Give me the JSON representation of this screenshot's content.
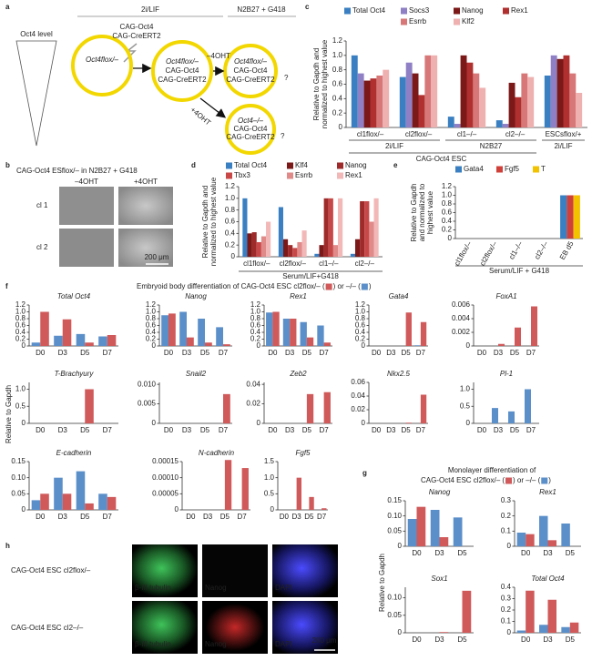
{
  "panels": {
    "a": {
      "letter": "a",
      "top_condition": "2i/LIF",
      "level": "Oct4 level",
      "transgene": [
        "CAG-Oct4",
        "CAG-CreERT2"
      ],
      "start_cell": [
        "Oct4flox/–",
        "CAG-Oct4",
        "CAG-CreERT2"
      ],
      "medium": "N2B27 + G418",
      "minus": "–4OHT",
      "plus": "+4OHT",
      "minus_cell": [
        "Oct4flox/–",
        "CAG-Oct4",
        "CAG-CreERT2"
      ],
      "plus_cell": [
        "Oct4–/–",
        "CAG-Oct4",
        "CAG-CreERT2"
      ],
      "outcome": [
        "?",
        "?"
      ]
    },
    "b": {
      "letter": "b",
      "title": "CAG-Oct4 ESflox/– in N2B27 + G418",
      "columns": [
        "–4OHT",
        "+4OHT"
      ],
      "rows": [
        "cl 1",
        "cl 2"
      ],
      "scale": "200 μm"
    },
    "c": {
      "letter": "c"
    },
    "d": {
      "letter": "d"
    },
    "e": {
      "letter": "e"
    },
    "f": {
      "letter": "f",
      "title_parts": [
        "Embryoid body differentiation of CAG-Oct4 ESC cl2flox/– (",
        ") or –/– (",
        ")"
      ],
      "ylabel": "Relative to Gapdh"
    },
    "g": {
      "letter": "g",
      "title_line": "Monolayer differentiation of",
      "title_parts": [
        "CAG-Oct4 ESC cl2flox/– (",
        ") or –/– (",
        ")"
      ],
      "ylabel": "Relative to Gapdh"
    },
    "h": {
      "letter": "h",
      "rows": [
        "CAG-Oct4 ESC cl2flox/–",
        "CAG-Oct4 ESC cl2–/–"
      ],
      "stains": [
        [
          "β-III tubulin",
          "Nanog",
          "DAPI"
        ],
        [
          "β-III tubulin",
          "Nanog",
          "DAPI"
        ]
      ],
      "scale": "200 μm"
    }
  },
  "chart_data": [
    {
      "type": "bar",
      "ylabel": [
        "Relative to Gapdh and",
        "normalized to highest value"
      ],
      "categories": [
        "cl1flox/–",
        "cl2flox/–",
        "cl1–/–",
        "cl2–/–",
        "ESCsflox/+"
      ],
      "groups": [
        "2i/LIF",
        "N2B27",
        "2i/LIF"
      ],
      "xlabel": "CAG-Oct4 ESC",
      "series": [
        {
          "name": "Total Oct4",
          "color": "#3a7fc1",
          "values": [
            1.0,
            0.7,
            0.15,
            0.1,
            0.72
          ]
        },
        {
          "name": "Socs3",
          "color": "#8f7fc4",
          "values": [
            0.75,
            0.9,
            0.05,
            0.05,
            1.0
          ]
        },
        {
          "name": "Nanog",
          "color": "#7b1818",
          "values": [
            0.65,
            0.75,
            1.0,
            0.62,
            0.95
          ]
        },
        {
          "name": "Rex1",
          "color": "#b03030",
          "values": [
            0.68,
            0.45,
            0.9,
            0.42,
            1.0
          ]
        },
        {
          "name": "Esrrb",
          "color": "#d77777",
          "values": [
            0.72,
            1.0,
            0.75,
            0.75,
            0.75
          ]
        },
        {
          "name": "Klf2",
          "color": "#efb0b0",
          "values": [
            0.8,
            1.0,
            0.55,
            0.7,
            0.48
          ]
        }
      ],
      "ylim": [
        0,
        1.2
      ],
      "yticks": [
        0,
        0.2,
        0.4,
        0.6,
        0.8,
        {
          "value": 1,
          "label": "1.0"
        },
        1.2
      ]
    },
    {
      "type": "bar",
      "ylabel": [
        "Relative to Gapdh and",
        "normalized to highest value"
      ],
      "categories": [
        "cl1flox/–",
        "cl2flox/–",
        "cl1–/–",
        "cl2–/–"
      ],
      "xlabel": "Serum/LIF+G418",
      "series": [
        {
          "name": "Total Oct4",
          "color": "#3a7fc1",
          "values": [
            1.0,
            0.85,
            0.05,
            0.05
          ]
        },
        {
          "name": "Klf4",
          "color": "#7b1818",
          "values": [
            0.4,
            0.3,
            0.2,
            0.3
          ]
        },
        {
          "name": "Nanog",
          "color": "#9e2a2a",
          "values": [
            0.42,
            0.2,
            1.0,
            0.95
          ]
        },
        {
          "name": "Tbx3",
          "color": "#c84848",
          "values": [
            0.25,
            0.15,
            1.0,
            0.95
          ]
        },
        {
          "name": "Esrrb",
          "color": "#e08a8a",
          "values": [
            0.35,
            0.25,
            0.2,
            0.6
          ]
        },
        {
          "name": "Rex1",
          "color": "#f2b8b8",
          "values": [
            0.6,
            0.45,
            1.0,
            1.0
          ]
        }
      ],
      "ylim": [
        0,
        1.2
      ],
      "yticks": [
        0,
        0.2,
        0.4,
        0.6,
        0.8,
        {
          "value": 1,
          "label": "1.0"
        },
        1.2
      ]
    },
    {
      "type": "bar",
      "ylabel": [
        "Relative to Gapdh",
        "and normalized to",
        "highest value"
      ],
      "categories": [
        "cl1flox/–",
        "cl2flox/–",
        "cl1–/–",
        "cl2–/–",
        "EB d5"
      ],
      "xlabel": "Serum/LIF + G418",
      "series": [
        {
          "name": "Gata4",
          "color": "#3a7fc1",
          "values": [
            0,
            0,
            0,
            0,
            1.0
          ]
        },
        {
          "name": "Fgf5",
          "color": "#d0403a",
          "values": [
            0,
            0,
            0,
            0,
            1.0
          ]
        },
        {
          "name": "T",
          "color": "#f2c200",
          "values": [
            0,
            0,
            0,
            0,
            1.0
          ]
        }
      ],
      "ylim": [
        0,
        1.2
      ],
      "yticks": [
        0,
        0.2,
        0.4,
        0.6,
        0.8,
        {
          "value": 1,
          "label": "1.0"
        },
        1.2
      ]
    },
    {
      "type": "bar",
      "title": "Total Oct4",
      "categories": [
        "D0",
        "D3",
        "D5",
        "D7"
      ],
      "series": [
        {
          "color": "#5b8fc9",
          "values": [
            0.1,
            0.3,
            0.35,
            0.28
          ]
        },
        {
          "color": "#d0595a",
          "values": [
            1.0,
            0.78,
            0.1,
            0.32
          ]
        }
      ],
      "ylim": [
        0,
        1.2
      ],
      "yticks": [
        0,
        0.2,
        0.4,
        0.6,
        0.8,
        {
          "value": 1,
          "label": "1.0"
        },
        1.2
      ]
    },
    {
      "type": "bar",
      "title": "Nanog",
      "categories": [
        "D0",
        "D3",
        "D5",
        "D7"
      ],
      "series": [
        {
          "color": "#5b8fc9",
          "values": [
            0.9,
            1.0,
            0.8,
            0.55
          ]
        },
        {
          "color": "#d0595a",
          "values": [
            0.95,
            0.25,
            0.1,
            0.05
          ]
        }
      ],
      "ylim": [
        0,
        1.2
      ],
      "yticks": [
        0,
        0.2,
        0.4,
        0.6,
        0.8,
        {
          "value": 1,
          "label": "1.0"
        },
        1.2
      ]
    },
    {
      "type": "bar",
      "title": "Rex1",
      "categories": [
        "D0",
        "D3",
        "D5",
        "D7"
      ],
      "series": [
        {
          "color": "#5b8fc9",
          "values": [
            0.98,
            0.8,
            0.7,
            0.6
          ]
        },
        {
          "color": "#d0595a",
          "values": [
            1.0,
            0.8,
            0.25,
            0.1
          ]
        }
      ],
      "ylim": [
        0,
        1.2
      ],
      "yticks": [
        0,
        0.2,
        0.4,
        0.6,
        0.8,
        {
          "value": 1,
          "label": "1.0"
        },
        1.2
      ]
    },
    {
      "type": "bar",
      "title": "Gata4",
      "categories": [
        "D0",
        "D3",
        "D5",
        "D7"
      ],
      "series": [
        {
          "color": "#5b8fc9",
          "values": [
            0,
            0,
            0,
            0.02
          ]
        },
        {
          "color": "#d0595a",
          "values": [
            0,
            0,
            0.98,
            0.7
          ]
        }
      ],
      "ylim": [
        0,
        1.2
      ],
      "yticks": [
        0,
        0.2,
        0.4,
        0.6,
        0.8,
        {
          "value": 1,
          "label": "1.0"
        },
        1.2
      ]
    },
    {
      "type": "bar",
      "title": "FoxA1",
      "categories": [
        "D0",
        "D3",
        "D5",
        "D7"
      ],
      "series": [
        {
          "color": "#5b8fc9",
          "values": [
            0,
            0,
            0,
            0
          ]
        },
        {
          "color": "#d0595a",
          "values": [
            0,
            0.0003,
            0.0027,
            0.0058
          ]
        }
      ],
      "ylim": [
        0,
        0.006
      ],
      "yticks": [
        0,
        0.002,
        0.004,
        0.006
      ]
    },
    {
      "type": "bar",
      "title": "T-Brachyury",
      "categories": [
        "D0",
        "D3",
        "D5",
        "D7"
      ],
      "series": [
        {
          "color": "#5b8fc9",
          "values": [
            0,
            0,
            0,
            0
          ]
        },
        {
          "color": "#d0595a",
          "values": [
            0,
            0,
            1.0,
            0
          ]
        }
      ],
      "ylim": [
        0,
        1.2
      ],
      "yticks": [
        0,
        0.5,
        {
          "value": 1,
          "label": "1.0"
        }
      ]
    },
    {
      "type": "bar",
      "title": "Snail2",
      "categories": [
        "D0",
        "D3",
        "D5",
        "D7"
      ],
      "series": [
        {
          "color": "#5b8fc9",
          "values": [
            0,
            0,
            0,
            0
          ]
        },
        {
          "color": "#d0595a",
          "values": [
            0,
            0,
            0,
            0.0075
          ]
        }
      ],
      "ylim": [
        0,
        0.0105
      ],
      "yticks": [
        0,
        0.005,
        {
          "value": 0.01,
          "label": "0.010"
        }
      ]
    },
    {
      "type": "bar",
      "title": "Zeb2",
      "categories": [
        "D0",
        "D3",
        "D5",
        "D7"
      ],
      "series": [
        {
          "color": "#5b8fc9",
          "values": [
            0,
            0,
            0,
            0
          ]
        },
        {
          "color": "#d0595a",
          "values": [
            0,
            0,
            0.03,
            0.032
          ]
        }
      ],
      "ylim": [
        0,
        0.042
      ],
      "yticks": [
        0,
        0.02,
        0.04
      ]
    },
    {
      "type": "bar",
      "title": "Nkx2.5",
      "categories": [
        "D0",
        "D3",
        "D5",
        "D7"
      ],
      "series": [
        {
          "color": "#5b8fc9",
          "values": [
            0,
            0,
            0,
            0
          ]
        },
        {
          "color": "#d0595a",
          "values": [
            0,
            0,
            0.001,
            0.042
          ]
        }
      ],
      "ylim": [
        0,
        0.06
      ],
      "yticks": [
        0,
        0.02,
        0.04,
        0.06
      ]
    },
    {
      "type": "bar",
      "title": "Pl-1",
      "categories": [
        "D0",
        "D3",
        "D5",
        "D7"
      ],
      "series": [
        {
          "color": "#5b8fc9",
          "values": [
            0,
            0.45,
            0.35,
            1.0
          ]
        },
        {
          "color": "#d0595a",
          "values": [
            0,
            0,
            0,
            0
          ]
        }
      ],
      "ylim": [
        0,
        1.2
      ],
      "yticks": [
        0,
        0.5,
        {
          "value": 1,
          "label": "1.0"
        }
      ]
    },
    {
      "type": "bar",
      "title": "E-cadherin",
      "categories": [
        "D0",
        "D3",
        "D5",
        "D7"
      ],
      "series": [
        {
          "color": "#5b8fc9",
          "values": [
            0.03,
            0.1,
            0.12,
            0.05
          ]
        },
        {
          "color": "#d0595a",
          "values": [
            0.05,
            0.05,
            0.02,
            0.04
          ]
        }
      ],
      "ylim": [
        0,
        0.15
      ],
      "yticks": [
        0,
        0.05,
        {
          "value": 0.1,
          "label": "0.10"
        },
        0.15
      ]
    },
    {
      "type": "bar",
      "title": "N-cadherin",
      "categories": [
        "D0",
        "D3",
        "D5",
        "D7"
      ],
      "series": [
        {
          "color": "#5b8fc9",
          "values": [
            0,
            0,
            0,
            0
          ]
        },
        {
          "color": "#d0595a",
          "values": [
            0,
            0,
            0.000155,
            0.00013
          ]
        }
      ],
      "ylim": [
        0,
        0.00015
      ],
      "yticks": [
        0,
        {
          "value": 5e-05,
          "label": "0.00005"
        },
        {
          "value": 0.0001,
          "label": "0.00010"
        },
        {
          "value": 0.00015,
          "label": "0.00015"
        }
      ]
    },
    {
      "type": "bar",
      "title": "Fgf5",
      "categories": [
        "D0",
        "D3",
        "D5",
        "D7"
      ],
      "series": [
        {
          "color": "#5b8fc9",
          "values": [
            0,
            0,
            0,
            0
          ]
        },
        {
          "color": "#d0595a",
          "values": [
            0,
            1.0,
            0.4,
            0.05
          ]
        }
      ],
      "ylim": [
        0,
        1.5
      ],
      "yticks": [
        0,
        0.5,
        {
          "value": 1,
          "label": "1.0"
        },
        1.5
      ]
    },
    {
      "type": "bar",
      "title": "Nanog",
      "categories": [
        "D0",
        "D3",
        "D5"
      ],
      "series": [
        {
          "color": "#5b8fc9",
          "values": [
            0.09,
            0.12,
            0.095
          ]
        },
        {
          "color": "#d0595a",
          "values": [
            0.13,
            0.03,
            0
          ]
        }
      ],
      "ylim": [
        0,
        0.15
      ],
      "yticks": [
        0,
        0.05,
        {
          "value": 0.1,
          "label": "0.10"
        },
        0.15
      ]
    },
    {
      "type": "bar",
      "title": "Rex1",
      "categories": [
        "D0",
        "D3",
        "D5"
      ],
      "series": [
        {
          "color": "#5b8fc9",
          "values": [
            0.09,
            0.2,
            0.15
          ]
        },
        {
          "color": "#d0595a",
          "values": [
            0.08,
            0.04,
            0
          ]
        }
      ],
      "ylim": [
        0,
        0.3
      ],
      "yticks": [
        0,
        0.1,
        0.2,
        0.3
      ]
    },
    {
      "type": "bar",
      "title": "Sox1",
      "categories": [
        "D0",
        "D3",
        "D5"
      ],
      "series": [
        {
          "color": "#5b8fc9",
          "values": [
            0,
            0,
            0
          ]
        },
        {
          "color": "#d0595a",
          "values": [
            0,
            0.002,
            0.12
          ]
        }
      ],
      "ylim": [
        0,
        0.13
      ],
      "yticks": [
        0,
        0.05,
        {
          "value": 0.1,
          "label": "0.10"
        }
      ]
    },
    {
      "type": "bar",
      "title": "Total Oct4",
      "categories": [
        "D0",
        "D3",
        "D5"
      ],
      "series": [
        {
          "color": "#5b8fc9",
          "values": [
            0.02,
            0.07,
            0.05
          ]
        },
        {
          "color": "#d0595a",
          "values": [
            0.37,
            0.29,
            0.09
          ]
        }
      ],
      "ylim": [
        0,
        0.4
      ],
      "yticks": [
        0,
        0.1,
        0.2,
        0.3,
        0.4
      ]
    }
  ]
}
